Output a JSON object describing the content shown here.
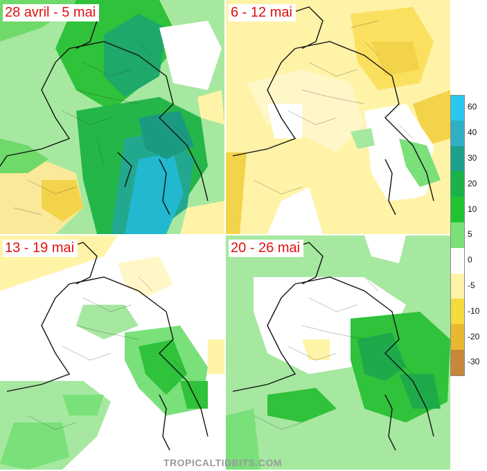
{
  "panels": [
    {
      "label": "28 avril - 5 mai"
    },
    {
      "label": "6 - 12 mai"
    },
    {
      "label": "13 - 19 mai"
    },
    {
      "label": "20 - 26 mai"
    }
  ],
  "colorscale": [
    {
      "label": "60",
      "color": "#29c8f0"
    },
    {
      "label": "40",
      "color": "#2fb0c4"
    },
    {
      "label": "30",
      "color": "#1ea08a"
    },
    {
      "label": "20",
      "color": "#19b34a"
    },
    {
      "label": "10",
      "color": "#21c430"
    },
    {
      "label": "5",
      "color": "#7ae07a"
    },
    {
      "label": "0",
      "color": "#ffffff"
    },
    {
      "label": "-5",
      "color": "#fff3a8"
    },
    {
      "label": "-10",
      "color": "#f5db3c"
    },
    {
      "label": "-20",
      "color": "#e8b830"
    },
    {
      "label": "-30",
      "color": "#c7883a"
    }
  ],
  "credit": "TROPICALTIDBITS.COM"
}
